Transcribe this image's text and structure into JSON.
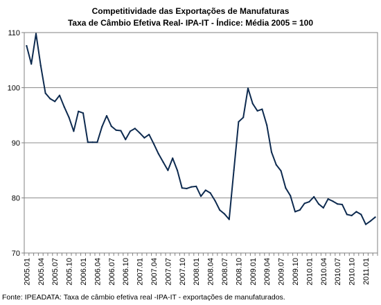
{
  "chart_data": {
    "type": "line",
    "title": "Competitividade das Exportações de Manufaturas",
    "subtitle": "Taxa de Câmbio Efetiva Real- IPA-IT - Índice: Média 2005 = 100",
    "xlabel": "",
    "ylabel": "",
    "ylim": [
      70,
      110
    ],
    "yticks": [
      "70",
      "80",
      "90",
      "100",
      "110"
    ],
    "grid": true,
    "legend": "none",
    "line_color": "#0d2a4f",
    "source_note": "Fonte: IPEADATA: Taxa de câmbio efetiva real -IPA-IT - exportações de manufaturados.",
    "x_tick_labels": [
      "2005.01",
      "2005.04",
      "2005.07",
      "2005.10",
      "2006.01",
      "2006.04",
      "2006.07",
      "2006.10",
      "2007.01",
      "2007.04",
      "2007.07",
      "2007.10",
      "2008.01",
      "2008.04",
      "2008.07",
      "2008.10",
      "2009.01",
      "2009.04",
      "2009.07",
      "2009.10",
      "2010.01",
      "2010.04",
      "2010.07",
      "2010.10",
      "2011.01"
    ],
    "x": [
      "2005.01",
      "2005.02",
      "2005.03",
      "2005.04",
      "2005.05",
      "2005.06",
      "2005.07",
      "2005.08",
      "2005.09",
      "2005.10",
      "2005.11",
      "2005.12",
      "2006.01",
      "2006.02",
      "2006.03",
      "2006.04",
      "2006.05",
      "2006.06",
      "2006.07",
      "2006.08",
      "2006.09",
      "2006.10",
      "2006.11",
      "2006.12",
      "2007.01",
      "2007.02",
      "2007.03",
      "2007.04",
      "2007.05",
      "2007.06",
      "2007.07",
      "2007.08",
      "2007.09",
      "2007.10",
      "2007.11",
      "2007.12",
      "2008.01",
      "2008.02",
      "2008.03",
      "2008.04",
      "2008.05",
      "2008.06",
      "2008.07",
      "2008.08",
      "2008.09",
      "2008.10",
      "2008.11",
      "2008.12",
      "2009.01",
      "2009.02",
      "2009.03",
      "2009.04",
      "2009.05",
      "2009.06",
      "2009.07",
      "2009.08",
      "2009.09",
      "2009.10",
      "2009.11",
      "2009.12",
      "2010.01",
      "2010.02",
      "2010.03",
      "2010.04",
      "2010.05",
      "2010.06",
      "2010.07",
      "2010.08",
      "2010.09",
      "2010.10",
      "2010.11",
      "2010.12",
      "2011.01",
      "2011.02",
      "2011.03"
    ],
    "series": [
      {
        "values": [
          107.6,
          104.3,
          109.8,
          104.0,
          99.0,
          98.0,
          97.5,
          98.6,
          96.5,
          94.6,
          92.1,
          95.7,
          95.4,
          90.1,
          90.1,
          90.1,
          92.9,
          94.9,
          93.0,
          92.3,
          92.2,
          90.6,
          92.1,
          92.6,
          91.8,
          90.9,
          91.5,
          89.8,
          88.0,
          86.5,
          85.0,
          87.2,
          85.0,
          81.8,
          81.7,
          82.0,
          82.1,
          80.3,
          81.4,
          80.9,
          79.5,
          77.8,
          77.1,
          76.1,
          85.0,
          93.8,
          94.6,
          99.9,
          97.1,
          95.8,
          96.1,
          93.2,
          88.3,
          86.0,
          84.9,
          81.8,
          80.4,
          77.5,
          77.8,
          79.0,
          79.3,
          80.2,
          78.9,
          78.2,
          79.8,
          79.4,
          78.9,
          78.8,
          77.0,
          76.8,
          77.5,
          77.0,
          75.2,
          75.8,
          76.5
        ]
      }
    ]
  }
}
